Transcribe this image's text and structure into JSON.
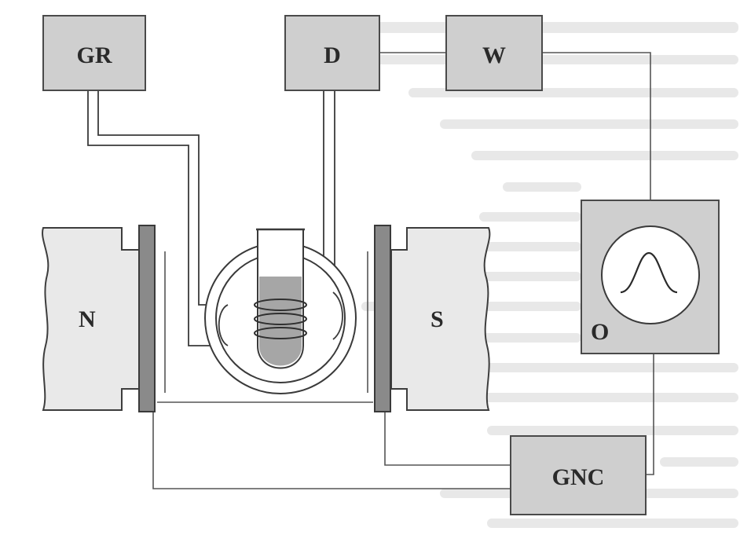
{
  "components": {
    "gradient": {
      "label": "GR"
    },
    "detector": {
      "label": "D"
    },
    "amplifier": {
      "label": "W"
    },
    "oscilloscope": {
      "label": "O"
    },
    "generator": {
      "label": "GNC"
    },
    "magnet_north": {
      "label": "N"
    },
    "magnet_south": {
      "label": "S"
    }
  },
  "colors": {
    "box_fill": "#cfcfcf",
    "plate_fill": "#8a8a8a",
    "sample_fill": "#a6a6a6",
    "line": "#4a4a4a"
  },
  "icons": [
    "resonance-peak-icon",
    "sample-tube-icon",
    "coil-icon"
  ]
}
